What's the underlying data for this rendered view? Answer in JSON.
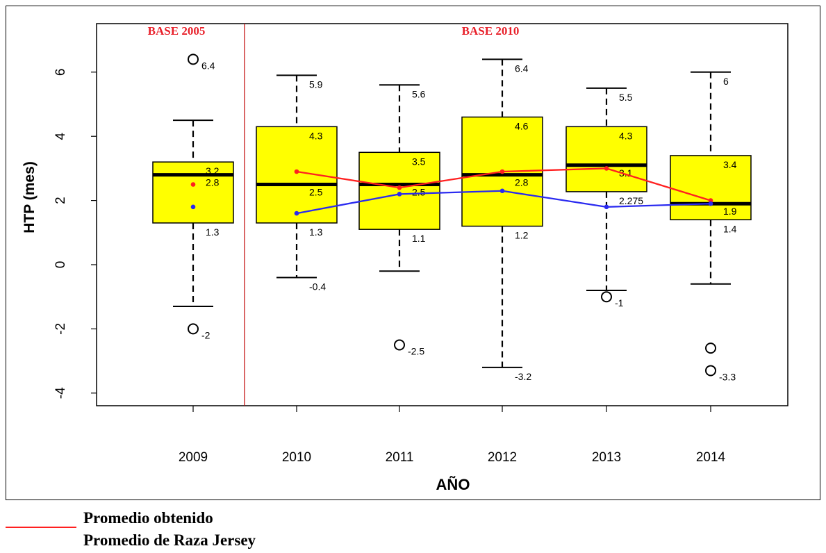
{
  "chart_data": {
    "type": "box",
    "xlabel": "AÑO",
    "ylabel": "HTP (mes)",
    "ylim": [
      -4.5,
      7.0
    ],
    "yticks": [
      "6",
      "4",
      "2",
      "0",
      "-2",
      "-4"
    ],
    "ytick_values": [
      6,
      4,
      2,
      0,
      -2,
      -4
    ],
    "categories": [
      "2009",
      "2010",
      "2011",
      "2012",
      "2013",
      "2014"
    ],
    "bases": [
      {
        "label": "BASE 2005",
        "color": "#e8202a"
      },
      {
        "label": "BASE 2010",
        "color": "#e8202a"
      }
    ],
    "boxes": [
      {
        "category": "2009",
        "whisker_low": -1.3,
        "q1": 1.3,
        "median": 2.8,
        "q3": 3.2,
        "whisker_high": 4.5,
        "outliers": [
          6.4,
          -2.0
        ],
        "labels": {
          "q3": "3.2",
          "median": "2.8",
          "q1": "1.3"
        },
        "outlier_labels": [
          "6.4",
          "-2"
        ]
      },
      {
        "category": "2010",
        "whisker_low": -0.4,
        "q1": 1.3,
        "median": 2.5,
        "q3": 4.3,
        "whisker_high": 5.9,
        "outliers": [],
        "labels": {
          "whisker_high": "5.9",
          "q3": "4.3",
          "median": "2.5",
          "q1": "1.3",
          "whisker_low": "-0.4"
        },
        "outlier_labels": []
      },
      {
        "category": "2011",
        "whisker_low": -0.2,
        "q1": 1.1,
        "median": 2.5,
        "q3": 3.5,
        "whisker_high": 5.6,
        "outliers": [
          -2.5
        ],
        "labels": {
          "whisker_high": "5.6",
          "q3": "3.5",
          "median": "2.5",
          "q1": "1.1"
        },
        "outlier_labels": [
          "-2.5"
        ]
      },
      {
        "category": "2012",
        "whisker_low": -3.2,
        "q1": 1.2,
        "median": 2.8,
        "q3": 4.6,
        "whisker_high": 6.4,
        "outliers": [],
        "labels": {
          "whisker_high": "6.4",
          "q3": "4.6",
          "median": "2.8",
          "q1": "1.2",
          "whisker_low": "-3.2"
        },
        "outlier_labels": []
      },
      {
        "category": "2013",
        "whisker_low": -0.8,
        "q1": 2.275,
        "median": 3.1,
        "q3": 4.3,
        "whisker_high": 5.5,
        "outliers": [
          -1.0
        ],
        "labels": {
          "whisker_high": "5.5",
          "q3": "4.3",
          "median": "3.1",
          "q1": "2.275"
        },
        "outlier_labels": [
          "-1"
        ]
      },
      {
        "category": "2014",
        "whisker_low": -0.6,
        "q1": 1.4,
        "median": 1.9,
        "q3": 3.4,
        "whisker_high": 6.0,
        "outliers": [
          -2.6,
          -3.3
        ],
        "labels": {
          "whisker_high": "6",
          "q3": "3.4",
          "median": "1.9",
          "q1": "1.4"
        },
        "outlier_labels": [
          "",
          "-3.3"
        ]
      }
    ],
    "series": [
      {
        "name": "Promedio obtenido",
        "color": "#ff2020",
        "x": [
          "2009",
          "2010",
          "2011",
          "2012",
          "2013",
          "2014"
        ],
        "values": [
          2.5,
          2.9,
          2.4,
          2.9,
          3.0,
          2.0
        ],
        "connect_from": "2010"
      },
      {
        "name": "Promedio de Raza Jersey",
        "color": "#2a2af0",
        "x": [
          "2009",
          "2010",
          "2011",
          "2012",
          "2013",
          "2014"
        ],
        "values": [
          1.8,
          1.6,
          2.2,
          2.3,
          1.8,
          1.9
        ],
        "connect_from": "2010"
      }
    ],
    "legend_lines": [
      {
        "label": "Promedio obtenido",
        "color": "#ff2020"
      },
      {
        "label": "Promedio de Raza Jersey",
        "color": "#2a2af0"
      }
    ],
    "colors": {
      "box_fill": "#ffff00",
      "box_stroke": "#000000",
      "separator": "#c00000"
    }
  }
}
